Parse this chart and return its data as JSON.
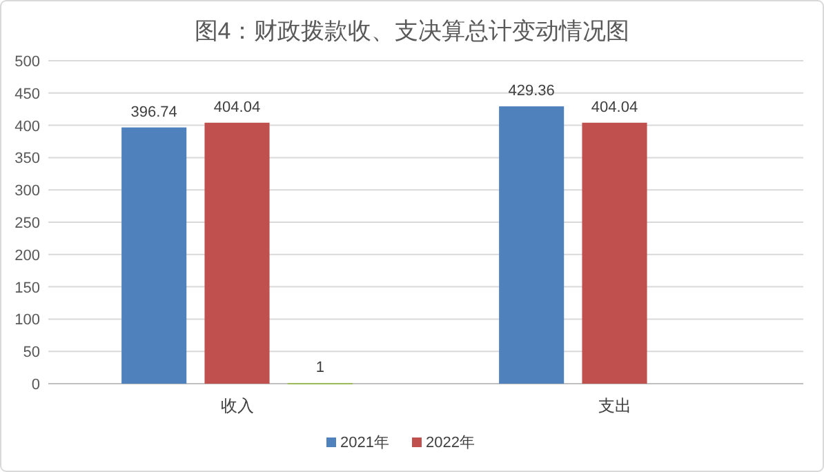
{
  "chart_data": {
    "type": "bar",
    "title": "图4：财政拨款收、支决算总计变动情况图",
    "categories": [
      "收入",
      "支出"
    ],
    "series": [
      {
        "name": "2021年",
        "color": "#4f81bd",
        "values": [
          396.74,
          429.36
        ]
      },
      {
        "name": "2022年",
        "color": "#c0504d",
        "values": [
          404.04,
          404.04
        ]
      },
      {
        "color": "#9bbb59",
        "values": [
          1,
          null
        ]
      }
    ],
    "ylim": [
      0,
      500
    ],
    "yticks": [
      0,
      50,
      100,
      150,
      200,
      250,
      300,
      350,
      400,
      450,
      500
    ],
    "grid": "y",
    "legend": "bottom",
    "data_labels": true
  }
}
